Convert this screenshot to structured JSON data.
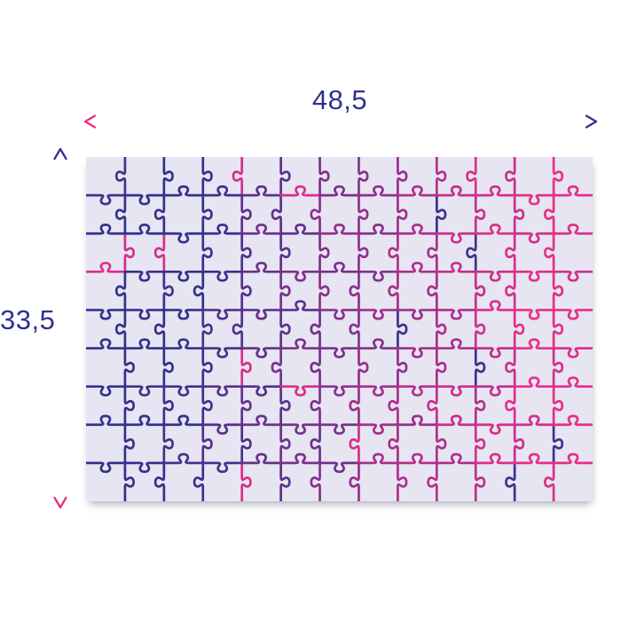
{
  "figure": {
    "type": "puzzle-dimensions-diagram"
  },
  "dimensions": {
    "width_label": "48,5",
    "height_label": "33,5"
  },
  "puzzle": {
    "cols": 13,
    "rows": 9,
    "surface_color": "#e6e5f1",
    "line_color_left": "#33318c",
    "line_color_right": "#e62e8b",
    "outlier_ratio": 0.05
  },
  "colors": {
    "label_navy": "#2e3192",
    "arrow_pink": "#ec2c85",
    "arrow_navy": "#33318c",
    "page_background": "#ffffff"
  }
}
